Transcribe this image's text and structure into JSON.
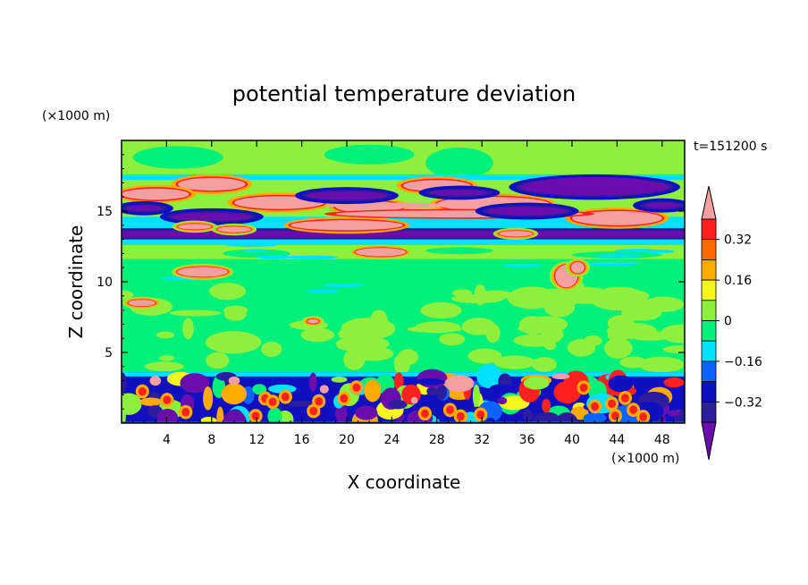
{
  "chart_data": {
    "type": "heatmap",
    "title": "potential temperature deviation",
    "xlabel": "X coordinate",
    "ylabel": "Z coordinate",
    "x_unit": "(×1000 m)",
    "y_unit": "(×1000 m)",
    "time_label": "t=151200 s",
    "xlim": [
      0,
      50
    ],
    "ylim": [
      0,
      20
    ],
    "x_ticks": [
      "4",
      "8",
      "12",
      "16",
      "20",
      "24",
      "28",
      "32",
      "36",
      "40",
      "44",
      "48"
    ],
    "x_tick_values": [
      4,
      8,
      12,
      16,
      20,
      24,
      28,
      32,
      36,
      40,
      44,
      48
    ],
    "y_ticks": [
      "5",
      "10",
      "15"
    ],
    "y_tick_values": [
      5,
      10,
      15
    ],
    "colorbar": {
      "labels": [
        "0.32",
        "0.16",
        "0",
        "−0.16",
        "−0.32"
      ],
      "label_values": [
        0.32,
        0.16,
        0,
        -0.16,
        -0.32
      ],
      "levels": [
        -0.4,
        -0.32,
        -0.24,
        -0.16,
        -0.08,
        0,
        0.08,
        0.16,
        0.24,
        0.32,
        0.4
      ],
      "colors": [
        "#6a0dad",
        "#2b1e9e",
        "#1010c0",
        "#0a64ff",
        "#00e0ff",
        "#00f07a",
        "#8ef03c",
        "#f5f51e",
        "#ffaa00",
        "#ff6a00",
        "#ff2020",
        "#f5a0a0"
      ],
      "extend": "both"
    },
    "background_level_color": "#00f07a",
    "features": [
      {
        "x": [
          0,
          50
        ],
        "z": [
          0,
          3.6
        ],
        "value": "mixed",
        "note": ""
      },
      {
        "x": [
          0,
          50
        ],
        "z": [
          13.0,
          13.8
        ],
        "value": -0.4
      },
      {
        "x": [
          4,
          22
        ],
        "z": [
          14.2,
          15.4
        ],
        "value": -0.32
      },
      {
        "x": [
          26,
          50
        ],
        "z": [
          16.0,
          17.4
        ],
        "value": -0.4
      },
      {
        "x": [
          18,
          42
        ],
        "z": [
          13.8,
          15.6
        ],
        "value": 0.4
      },
      {
        "x": [
          5,
          10
        ],
        "z": [
          10.2,
          11.2
        ],
        "value": 0.4
      },
      {
        "x": [
          20,
          26
        ],
        "z": [
          11.6,
          12.6
        ],
        "value": 0.4
      },
      {
        "x": [
          38,
          41
        ],
        "z": [
          9.4,
          11.6
        ],
        "value": 0.4
      }
    ]
  }
}
